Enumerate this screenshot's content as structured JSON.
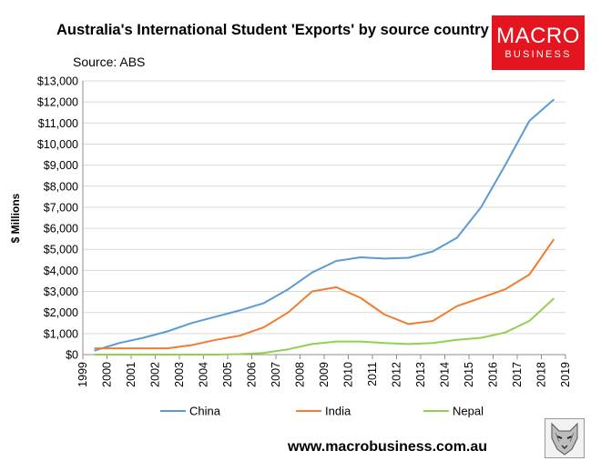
{
  "title": "Australia's International Student 'Exports' by source country",
  "source": "Source: ABS",
  "logo": {
    "main": "MACRO",
    "sub": "BUSINESS",
    "color": "#e4151f"
  },
  "website": "www.macrobusiness.com.au",
  "wolf_icon": "wolf-head-icon",
  "chart_data": {
    "type": "line",
    "ylabel": "$ Millions",
    "xlabel": "",
    "ylim": [
      0,
      13000
    ],
    "xlim": [
      1999,
      2019
    ],
    "y_ticks": [
      "$0",
      "$1,000",
      "$2,000",
      "$3,000",
      "$4,000",
      "$5,000",
      "$6,000",
      "$7,000",
      "$8,000",
      "$9,000",
      "$10,000",
      "$11,000",
      "$12,000",
      "$13,000"
    ],
    "x_ticks": [
      "1999",
      "2000",
      "2001",
      "2002",
      "2003",
      "2004",
      "2005",
      "2006",
      "2007",
      "2008",
      "2009",
      "2010",
      "2011",
      "2012",
      "2013",
      "2014",
      "2015",
      "2016",
      "2017",
      "2018",
      "2019"
    ],
    "grid": "horizontal",
    "legend_position": "bottom",
    "x": [
      1999.5,
      2000.5,
      2001.5,
      2002.5,
      2003.5,
      2004.5,
      2005.5,
      2006.5,
      2007.5,
      2008.5,
      2009.5,
      2010.5,
      2011.5,
      2012.5,
      2013.5,
      2014.5,
      2015.5,
      2016.5,
      2017.5,
      2018.5
    ],
    "series": [
      {
        "name": "China",
        "color": "#5b9bd5",
        "values": [
          200,
          550,
          800,
          1100,
          1500,
          1800,
          2100,
          2450,
          3100,
          3900,
          4450,
          4620,
          4560,
          4600,
          4900,
          5550,
          7000,
          9000,
          11100,
          12100
        ]
      },
      {
        "name": "India",
        "color": "#ed7d31",
        "values": [
          300,
          300,
          300,
          300,
          450,
          700,
          900,
          1300,
          2000,
          3000,
          3200,
          2700,
          1900,
          1450,
          1600,
          2300,
          2700,
          3100,
          3800,
          5450
        ]
      },
      {
        "name": "Nepal",
        "color": "#92d050",
        "values": [
          0,
          0,
          0,
          0,
          0,
          0,
          20,
          80,
          250,
          500,
          620,
          620,
          550,
          500,
          550,
          700,
          800,
          1050,
          1600,
          2650
        ]
      }
    ]
  }
}
